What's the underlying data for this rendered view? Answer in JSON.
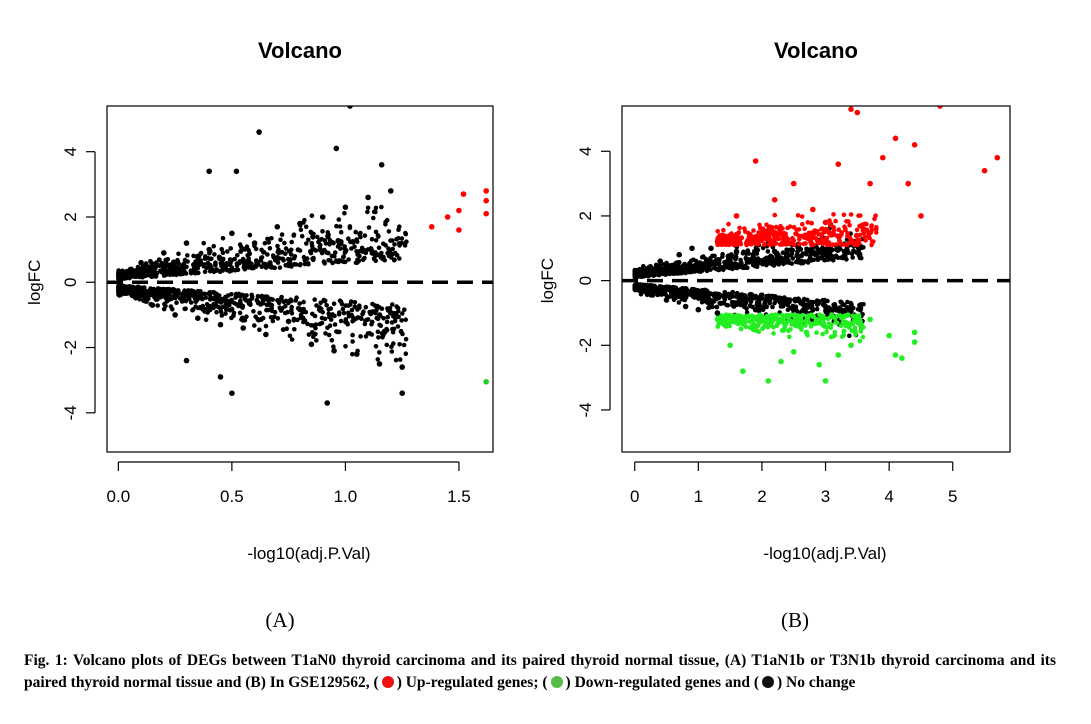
{
  "chart_data": [
    {
      "type": "scatter",
      "title": "Volcano",
      "xlabel": "-log10(adj.P.Val)",
      "ylabel": "logFC",
      "xlim": [
        -0.05,
        1.65
      ],
      "ylim": [
        -5.2,
        5.4
      ],
      "xticks": [
        0.0,
        0.5,
        1.0,
        1.5
      ],
      "xtick_labels": [
        "0.0",
        "0.5",
        "1.0",
        "1.5"
      ],
      "yticks": [
        -4,
        -2,
        0,
        2,
        4
      ],
      "ytick_labels": [
        "-4",
        "-2",
        "0",
        "2",
        "4"
      ],
      "reference_line": {
        "y": 0,
        "style": "dashed"
      },
      "series": [
        {
          "color": "#000000",
          "role": "no-change",
          "points": [
            [
              0.02,
              0.2
            ],
            [
              0.05,
              -0.3
            ],
            [
              0.1,
              0.6
            ],
            [
              0.15,
              -0.7
            ],
            [
              0.2,
              0.9
            ],
            [
              0.25,
              -1.0
            ],
            [
              0.3,
              1.2
            ],
            [
              0.35,
              -1.1
            ],
            [
              0.4,
              1.0
            ],
            [
              0.45,
              -1.3
            ],
            [
              0.5,
              1.5
            ],
            [
              0.55,
              -1.4
            ],
            [
              0.6,
              1.2
            ],
            [
              0.65,
              -1.6
            ],
            [
              0.7,
              1.7
            ],
            [
              0.75,
              -1.2
            ],
            [
              0.8,
              1.8
            ],
            [
              0.85,
              -1.9
            ],
            [
              0.9,
              2.0
            ],
            [
              0.95,
              -2.1
            ],
            [
              1.0,
              2.3
            ],
            [
              1.05,
              -2.2
            ],
            [
              1.1,
              2.6
            ],
            [
              1.15,
              -2.5
            ],
            [
              1.2,
              2.8
            ],
            [
              1.25,
              -2.6
            ],
            [
              0.62,
              4.6
            ],
            [
              0.96,
              4.1
            ],
            [
              0.52,
              3.4
            ],
            [
              0.4,
              3.4
            ],
            [
              1.02,
              5.4
            ],
            [
              0.92,
              -3.7
            ],
            [
              0.5,
              -3.4
            ],
            [
              0.3,
              -2.4
            ],
            [
              1.25,
              -3.4
            ],
            [
              0.45,
              -2.9
            ],
            [
              1.16,
              3.6
            ]
          ]
        },
        {
          "color": "#ff0000",
          "role": "up-regulated",
          "points": [
            [
              1.38,
              1.7
            ],
            [
              1.45,
              2.0
            ],
            [
              1.5,
              1.6
            ],
            [
              1.5,
              2.2
            ],
            [
              1.52,
              2.7
            ],
            [
              1.62,
              2.8
            ],
            [
              1.62,
              2.5
            ],
            [
              1.62,
              2.1
            ]
          ]
        },
        {
          "color": "#22cc22",
          "role": "down-regulated",
          "points": [
            [
              1.62,
              -3.05
            ]
          ]
        }
      ]
    },
    {
      "type": "scatter",
      "title": "Volcano",
      "xlabel": "-log10(adj.P.Val)",
      "ylabel": "logFC",
      "xlim": [
        -0.2,
        5.9
      ],
      "ylim": [
        -5.3,
        5.4
      ],
      "xticks": [
        0,
        1,
        2,
        3,
        4,
        5
      ],
      "xtick_labels": [
        "0",
        "1",
        "2",
        "3",
        "4",
        "5"
      ],
      "yticks": [
        -4,
        -2,
        0,
        2,
        4
      ],
      "ytick_labels": [
        "-4",
        "-2",
        "0",
        "2",
        "4"
      ],
      "reference_line": {
        "y": 0,
        "style": "dashed"
      },
      "series": [
        {
          "color": "#000000",
          "role": "no-change",
          "points": [
            [
              0.1,
              0.3
            ],
            [
              0.2,
              -0.4
            ],
            [
              0.4,
              0.6
            ],
            [
              0.5,
              -0.6
            ],
            [
              0.7,
              0.8
            ],
            [
              0.8,
              -0.8
            ],
            [
              0.9,
              1.0
            ],
            [
              1.0,
              -0.9
            ],
            [
              1.2,
              1.0
            ],
            [
              1.3,
              -1.0
            ],
            [
              1.6,
              0.9
            ],
            [
              1.9,
              -0.9
            ],
            [
              2.2,
              0.9
            ],
            [
              2.5,
              -0.9
            ],
            [
              2.8,
              0.9
            ],
            [
              3.0,
              -0.8
            ],
            [
              3.3,
              0.9
            ],
            [
              3.4,
              -0.8
            ]
          ]
        },
        {
          "color": "#ff0000",
          "role": "up-regulated",
          "points": [
            [
              1.3,
              1.2
            ],
            [
              1.6,
              2.0
            ],
            [
              1.9,
              3.7
            ],
            [
              2.2,
              2.5
            ],
            [
              2.5,
              3.0
            ],
            [
              2.8,
              2.2
            ],
            [
              3.0,
              1.8
            ],
            [
              3.2,
              3.6
            ],
            [
              3.4,
              5.3
            ],
            [
              3.5,
              5.2
            ],
            [
              3.3,
              5.5
            ],
            [
              3.7,
              3.0
            ],
            [
              3.9,
              3.8
            ],
            [
              4.1,
              4.4
            ],
            [
              4.3,
              3.0
            ],
            [
              4.4,
              4.2
            ],
            [
              4.5,
              2.0
            ],
            [
              4.8,
              5.4
            ],
            [
              5.5,
              3.4
            ],
            [
              5.7,
              3.8
            ]
          ]
        },
        {
          "color": "#22ee22",
          "role": "down-regulated",
          "points": [
            [
              1.3,
              -1.2
            ],
            [
              1.5,
              -2.0
            ],
            [
              1.7,
              -2.8
            ],
            [
              1.9,
              -1.5
            ],
            [
              2.1,
              -3.1
            ],
            [
              2.3,
              -2.5
            ],
            [
              2.5,
              -2.2
            ],
            [
              2.7,
              -1.6
            ],
            [
              2.9,
              -2.6
            ],
            [
              3.0,
              -3.1
            ],
            [
              3.2,
              -2.3
            ],
            [
              3.3,
              -1.1
            ],
            [
              3.4,
              -2.0
            ],
            [
              3.7,
              -1.2
            ],
            [
              4.0,
              -1.7
            ],
            [
              4.1,
              -2.3
            ],
            [
              4.2,
              -2.4
            ],
            [
              4.4,
              -1.9
            ],
            [
              4.4,
              -1.6
            ]
          ]
        }
      ]
    }
  ],
  "panel_labels": [
    "(A)",
    "(B)"
  ],
  "caption": {
    "fig_label": "Fig. 1:",
    "text_main": "Volcano plots of DEGs between T1aN0 thyroid carcinoma and its paired thyroid normal tissue, (A) T1aN1b or T3N1b thyroid carcinoma and its paired thyroid normal tissue and (B) In GSE129562, (",
    "up_text": ") Up-regulated genes; (",
    "down_text": ") Down-regulated genes and (",
    "nochange_text": ") No change",
    "up_color": "#ee1111",
    "down_color": "#55bb44",
    "nochange_color": "#111111"
  }
}
